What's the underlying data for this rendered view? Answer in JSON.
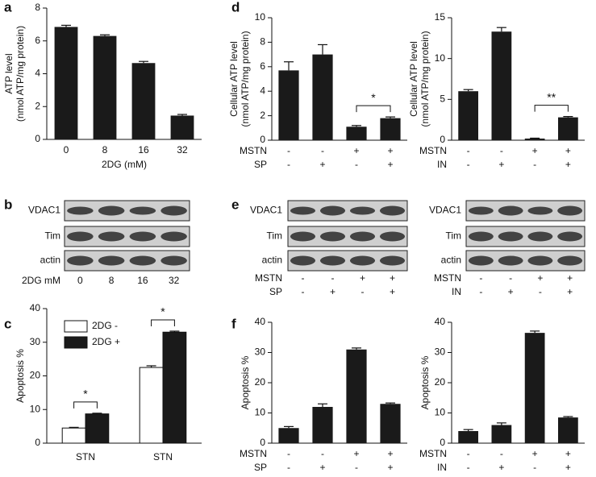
{
  "chart_data": [
    {
      "type": "bar",
      "label": "a",
      "ylabel": [
        "ATP level",
        "(nmol ATP/mg protein)"
      ],
      "xlabel": "2DG (mM)",
      "categories": [
        "0",
        "8",
        "16",
        "32"
      ],
      "values": [
        6.85,
        6.3,
        4.65,
        1.45
      ],
      "errors": [
        0.1,
        0.07,
        0.1,
        0.07
      ],
      "ylim": [
        0,
        8
      ],
      "yticks": [
        0,
        2,
        4,
        6,
        8
      ],
      "color": "#1a1a1a"
    },
    {
      "type": "bar",
      "label": "d",
      "ylabel": [
        "Cellular ATP level",
        "(nmol ATP/mg protein)"
      ],
      "conditions": [
        {
          "name": "MSTN",
          "values": [
            "-",
            "-",
            "+",
            "+"
          ]
        },
        {
          "name": "SP",
          "values": [
            "-",
            "+",
            "-",
            "+"
          ]
        }
      ],
      "values": [
        5.7,
        7.0,
        1.1,
        1.8
      ],
      "errors": [
        0.7,
        0.8,
        0.1,
        0.1
      ],
      "significance": "*",
      "ylim": [
        0,
        10
      ],
      "yticks": [
        0,
        2,
        4,
        6,
        8,
        10
      ],
      "color": "#1a1a1a"
    },
    {
      "type": "bar",
      "ylabel": [
        "Cellular ATP level",
        "(nmol ATP/mg protein)"
      ],
      "conditions": [
        {
          "name": "MSTN",
          "values": [
            "-",
            "-",
            "+",
            "+"
          ]
        },
        {
          "name": "IN",
          "values": [
            "-",
            "+",
            "-",
            "+"
          ]
        }
      ],
      "values": [
        6.0,
        13.3,
        0.2,
        2.8
      ],
      "errors": [
        0.2,
        0.5,
        0.05,
        0.1
      ],
      "significance": "**",
      "ylim": [
        0,
        15
      ],
      "yticks": [
        0,
        5,
        10,
        15
      ],
      "color": "#1a1a1a"
    },
    {
      "type": "grouped_bar",
      "label": "c",
      "ylabel": [
        "Apoptosis %"
      ],
      "categories": [
        "STN",
        "STN"
      ],
      "series": [
        {
          "name": "2DG -",
          "color": "#ffffff",
          "values": [
            4.5,
            22.5
          ],
          "errors": [
            0.2,
            0.5
          ]
        },
        {
          "name": "2DG +",
          "color": "#1a1a1a",
          "values": [
            8.7,
            33
          ],
          "errors": [
            0.2,
            0.3
          ]
        }
      ],
      "significance": [
        "*",
        "*"
      ],
      "ylim": [
        0,
        40
      ],
      "yticks": [
        0,
        10,
        20,
        30,
        40
      ]
    },
    {
      "type": "bar",
      "label": "f",
      "ylabel": [
        "Apoptosis %"
      ],
      "conditions": [
        {
          "name": "MSTN",
          "values": [
            "-",
            "-",
            "+",
            "+"
          ]
        },
        {
          "name": "SP",
          "values": [
            "-",
            "+",
            "-",
            "+"
          ]
        }
      ],
      "values": [
        5,
        12,
        31,
        13
      ],
      "errors": [
        0.5,
        1,
        0.5,
        0.3
      ],
      "ylim": [
        0,
        40
      ],
      "yticks": [
        0,
        10,
        20,
        30,
        40
      ],
      "color": "#1a1a1a"
    },
    {
      "type": "bar",
      "ylabel": [
        "Apoptosis %"
      ],
      "conditions": [
        {
          "name": "MSTN",
          "values": [
            "-",
            "-",
            "+",
            "+"
          ]
        },
        {
          "name": "IN",
          "values": [
            "-",
            "+",
            "-",
            "+"
          ]
        }
      ],
      "values": [
        4,
        6,
        36.5,
        8.5
      ],
      "errors": [
        0.5,
        0.7,
        0.6,
        0.3
      ],
      "ylim": [
        0,
        40
      ],
      "yticks": [
        0,
        10,
        20,
        30,
        40
      ],
      "color": "#1a1a1a"
    }
  ],
  "blots": [
    {
      "label": "b",
      "rows": [
        "VDAC1",
        "Tim",
        "actin"
      ],
      "footer": {
        "name": "2DG mM",
        "values": [
          "0",
          "8",
          "16",
          "32"
        ]
      }
    },
    {
      "label": "e",
      "rows": [
        "VDAC1",
        "Tim",
        "actin"
      ],
      "conditions": [
        {
          "name": "MSTN",
          "values": [
            "-",
            "-",
            "+",
            "+"
          ]
        },
        {
          "name": "SP",
          "values": [
            "-",
            "+",
            "-",
            "+"
          ]
        }
      ]
    },
    {
      "rows": [
        "VDAC1",
        "Tim",
        "actin"
      ],
      "conditions": [
        {
          "name": "MSTN",
          "values": [
            "-",
            "-",
            "+",
            "+"
          ]
        },
        {
          "name": "IN",
          "values": [
            "-",
            "+",
            "-",
            "+"
          ]
        }
      ]
    }
  ]
}
